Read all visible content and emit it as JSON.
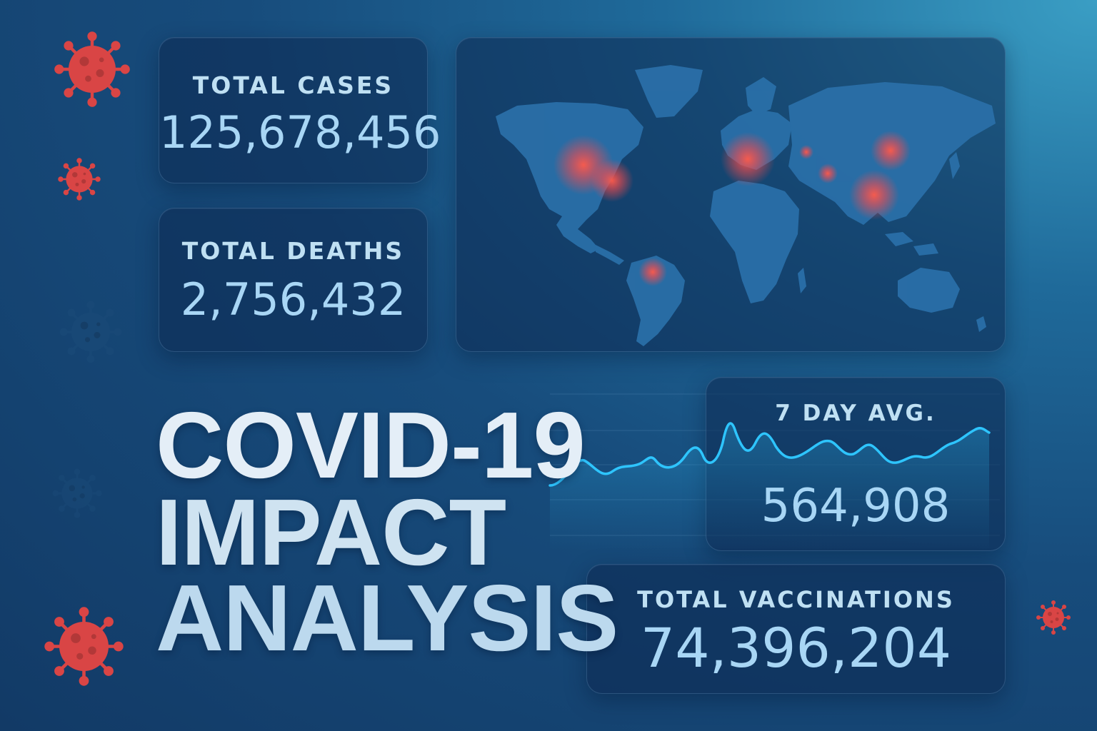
{
  "title": {
    "line1": "COVID-19",
    "line2": "IMPACT",
    "line3": "ANALYSIS"
  },
  "stats": {
    "total_cases": {
      "label": "TOTAL CASES",
      "value": "125,678,456"
    },
    "total_deaths": {
      "label": "TOTAL DEATHS",
      "value": "2,756,432"
    },
    "seven_day_avg": {
      "label": "7 DAY AVG.",
      "value": "564,908"
    },
    "total_vaccinations": {
      "label": "TOTAL VACCINATIONS",
      "value": "74,396,204"
    }
  },
  "map": {
    "icon": "world-map",
    "hotspot_regions": [
      "north-america",
      "europe",
      "south-america",
      "east-asia",
      "south-asia"
    ]
  },
  "decorations": {
    "icon": "virus-icon"
  },
  "colors": {
    "background": "#174c7c",
    "card": "#0c2850",
    "label": "#bfe0f3",
    "value": "#a8d6f5",
    "trend_line": "#2ec5ff",
    "hotspot": "#ff4a4a",
    "virus": "#d94545"
  }
}
